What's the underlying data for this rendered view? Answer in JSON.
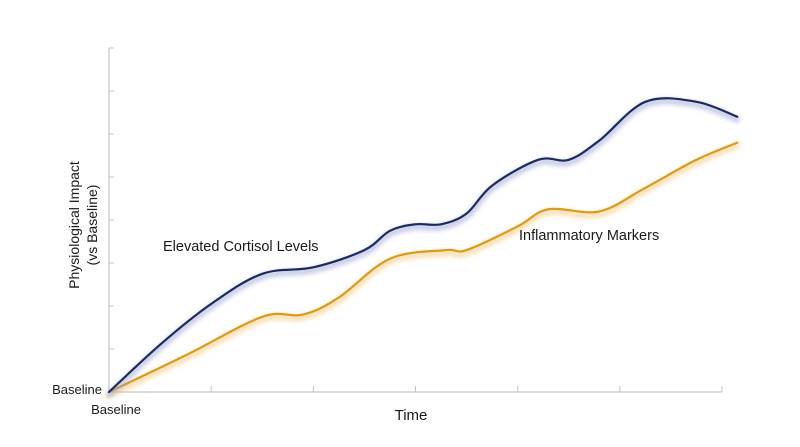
{
  "chart_data": {
    "type": "line",
    "xlabel": "Time",
    "ylabel_line1": "Physiological Impact",
    "ylabel_line2": "(vs Baseline)",
    "x_tick_label": "Baseline",
    "y_tick_label": "Baseline",
    "xlim": [
      0,
      12
    ],
    "ylim": [
      0,
      8
    ],
    "x_tick_count": 6,
    "y_tick_count": 8,
    "grid": false,
    "legend": "inline labels",
    "series": [
      {
        "name": "Elevated Cortisol Levels",
        "color": "#1c2b5c",
        "glow": "#9aa3d6",
        "points": [
          [
            0,
            0
          ],
          [
            1,
            1.1
          ],
          [
            2,
            2.05
          ],
          [
            3,
            2.75
          ],
          [
            4,
            2.9
          ],
          [
            5,
            3.3
          ],
          [
            5.5,
            3.75
          ],
          [
            6,
            3.9
          ],
          [
            6.5,
            3.9
          ],
          [
            7,
            4.15
          ],
          [
            7.5,
            4.8
          ],
          [
            8.4,
            5.4
          ],
          [
            9,
            5.4
          ],
          [
            9.6,
            5.85
          ],
          [
            10.5,
            6.75
          ],
          [
            11.5,
            6.75
          ],
          [
            12.3,
            6.4
          ]
        ]
      },
      {
        "name": "Inflammatory Markers",
        "color": "#d99a1e",
        "glow": "#f2c678",
        "points": [
          [
            0,
            0
          ],
          [
            1.5,
            0.85
          ],
          [
            3,
            1.75
          ],
          [
            3.8,
            1.8
          ],
          [
            4.5,
            2.2
          ],
          [
            5.5,
            3.1
          ],
          [
            6.6,
            3.3
          ],
          [
            7,
            3.3
          ],
          [
            8,
            3.85
          ],
          [
            8.6,
            4.25
          ],
          [
            9.6,
            4.2
          ],
          [
            10.5,
            4.75
          ],
          [
            11.5,
            5.4
          ],
          [
            12.3,
            5.8
          ]
        ]
      }
    ]
  }
}
